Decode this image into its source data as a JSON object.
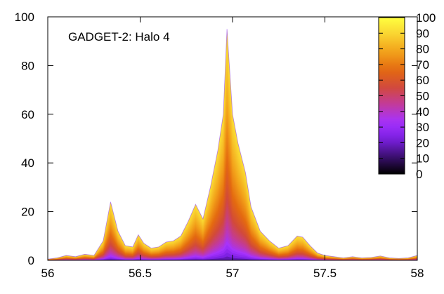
{
  "chart_data": {
    "type": "area",
    "title": "GADGET-2: Halo 4",
    "xlabel": "",
    "ylabel": "",
    "xlim": [
      56,
      58
    ],
    "ylim": [
      0,
      100
    ],
    "grid": false,
    "x_ticks": [
      "56",
      "56.5",
      "57",
      "57.5",
      "58"
    ],
    "y_ticks": [
      "0",
      "20",
      "40",
      "60",
      "80",
      "100"
    ],
    "colorbar": {
      "range": [
        0,
        100
      ],
      "ticks": [
        "0",
        "10",
        "20",
        "30",
        "40",
        "50",
        "60",
        "70",
        "80",
        "90",
        "100"
      ],
      "palette": [
        "#000000",
        "#3b0f70",
        "#7a1fe0",
        "#a632ff",
        "#c23a9c",
        "#d24a3a",
        "#e46a10",
        "#f2a01a",
        "#f9d230",
        "#ffff40"
      ]
    },
    "series": [
      {
        "x": [
          56.0,
          56.05,
          56.1,
          56.15,
          56.2,
          56.25,
          56.3,
          56.34,
          56.38,
          56.42,
          56.46,
          56.49,
          56.52,
          56.56,
          56.6,
          56.64,
          56.68,
          56.72,
          56.76,
          56.8,
          56.84,
          56.88,
          56.92,
          56.95,
          56.97,
          57.0,
          57.03,
          57.07,
          57.1,
          57.15,
          57.2,
          57.25,
          57.3,
          57.35,
          57.38,
          57.42,
          57.46,
          57.5,
          57.55,
          57.6,
          57.65,
          57.7,
          57.75,
          57.8,
          57.85,
          57.9,
          57.95,
          58.0
        ],
        "y": [
          0.5,
          1.0,
          2.0,
          1.5,
          2.5,
          2.0,
          8.0,
          24.0,
          12.0,
          6.0,
          5.5,
          10.5,
          7.0,
          5.0,
          5.5,
          7.5,
          8.0,
          10.0,
          16.0,
          23.0,
          17.0,
          30.0,
          45.0,
          60.0,
          95.0,
          60.0,
          48.0,
          36.0,
          22.0,
          12.0,
          8.0,
          5.0,
          6.0,
          10.0,
          9.5,
          6.0,
          3.0,
          2.0,
          1.5,
          1.0,
          1.5,
          1.0,
          1.2,
          1.8,
          1.0,
          0.8,
          1.0,
          2.0
        ]
      }
    ]
  }
}
